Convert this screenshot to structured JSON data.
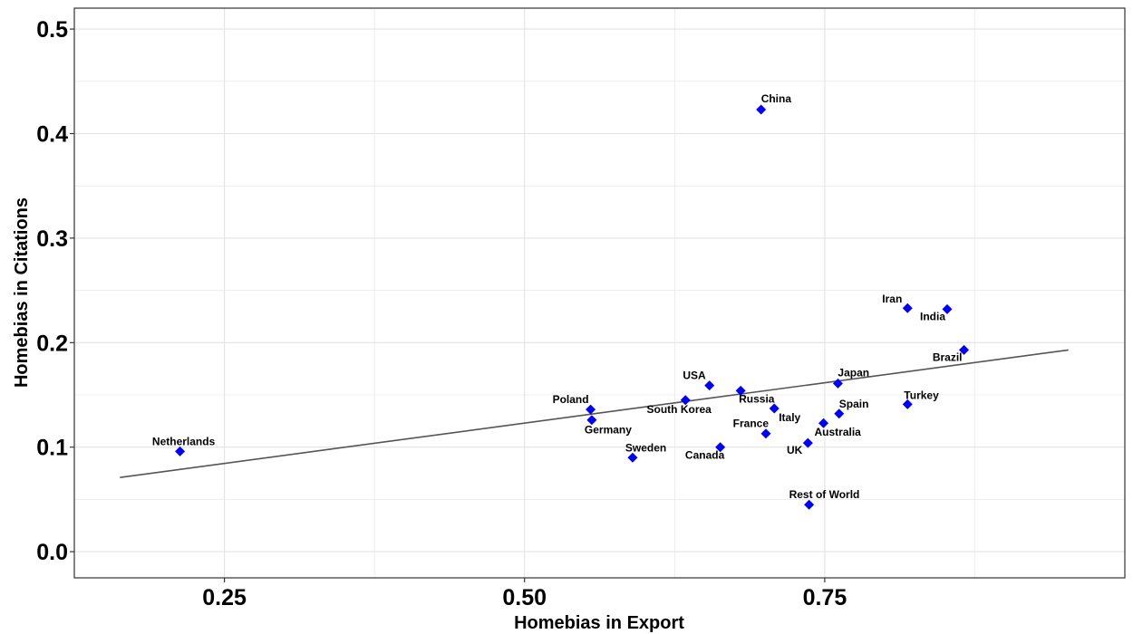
{
  "chart_data": {
    "type": "scatter",
    "title": "",
    "xlabel": "Homebias in Export",
    "ylabel": "Homebias in Citations",
    "xlim": [
      0.125,
      1.0
    ],
    "ylim": [
      -0.025,
      0.52
    ],
    "x_ticks": [
      0.25,
      0.5,
      0.75
    ],
    "x_tick_labels": [
      "0.25",
      "0.50",
      "0.75"
    ],
    "y_ticks": [
      0.0,
      0.1,
      0.2,
      0.3,
      0.4,
      0.5
    ],
    "y_tick_labels": [
      "0.0",
      "0.1",
      "0.2",
      "0.3",
      "0.4",
      "0.5"
    ],
    "grid": true,
    "point_color": "#0000ff",
    "line_color": "#555555",
    "points": [
      {
        "label": "China",
        "x": 0.697,
        "y": 0.423
      },
      {
        "label": "Iran",
        "x": 0.819,
        "y": 0.233
      },
      {
        "label": "India",
        "x": 0.852,
        "y": 0.232
      },
      {
        "label": "Brazil",
        "x": 0.866,
        "y": 0.193
      },
      {
        "label": "Japan",
        "x": 0.761,
        "y": 0.161
      },
      {
        "label": "USA",
        "x": 0.654,
        "y": 0.159
      },
      {
        "label": "Russia",
        "x": 0.68,
        "y": 0.154
      },
      {
        "label": "South Korea",
        "x": 0.634,
        "y": 0.145
      },
      {
        "label": "Turkey",
        "x": 0.819,
        "y": 0.141
      },
      {
        "label": "Italy",
        "x": 0.708,
        "y": 0.137
      },
      {
        "label": "Poland",
        "x": 0.555,
        "y": 0.136
      },
      {
        "label": "Spain",
        "x": 0.762,
        "y": 0.132
      },
      {
        "label": "Germany",
        "x": 0.556,
        "y": 0.126
      },
      {
        "label": "Australia",
        "x": 0.749,
        "y": 0.123
      },
      {
        "label": "France",
        "x": 0.701,
        "y": 0.113
      },
      {
        "label": "UK",
        "x": 0.736,
        "y": 0.104
      },
      {
        "label": "Canada",
        "x": 0.663,
        "y": 0.1
      },
      {
        "label": "Netherlands",
        "x": 0.213,
        "y": 0.096
      },
      {
        "label": "Sweden",
        "x": 0.59,
        "y": 0.09
      },
      {
        "label": "Rest of World",
        "x": 0.737,
        "y": 0.045
      }
    ],
    "trend_line": {
      "x": [
        0.163,
        0.953
      ],
      "y": [
        0.071,
        0.193
      ]
    }
  }
}
